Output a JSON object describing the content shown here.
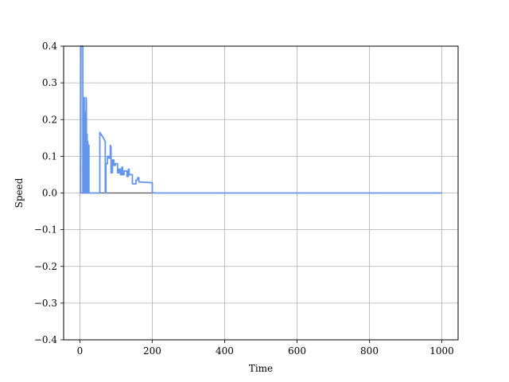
{
  "chart_data": {
    "type": "line",
    "title": "",
    "xlabel": "Time",
    "ylabel": "Speed",
    "xlim": [
      -45,
      1045
    ],
    "ylim": [
      -0.4,
      0.4
    ],
    "grid": true,
    "xticks": [
      0,
      200,
      400,
      600,
      800,
      1000
    ],
    "xtick_labels": [
      "0",
      "200",
      "400",
      "600",
      "800",
      "1000"
    ],
    "yticks": [
      -0.4,
      -0.3,
      -0.2,
      -0.1,
      0.0,
      0.1,
      0.2,
      0.3,
      0.4
    ],
    "ytick_labels": [
      "−0.4",
      "−0.3",
      "−0.2",
      "−0.1",
      "0.0",
      "0.1",
      "0.2",
      "0.3",
      "0.4"
    ],
    "series": [
      {
        "color": "#6495ED",
        "points": [
          [
            0,
            0
          ],
          [
            2,
            0
          ],
          [
            3,
            0.4
          ],
          [
            8,
            0.4
          ],
          [
            8,
            0
          ],
          [
            10,
            0
          ],
          [
            10,
            0.26
          ],
          [
            12,
            0.26
          ],
          [
            12,
            0
          ],
          [
            13,
            0
          ],
          [
            13,
            0.22
          ],
          [
            14,
            0.22
          ],
          [
            14,
            0
          ],
          [
            15,
            0
          ],
          [
            15,
            0.16
          ],
          [
            16,
            0.16
          ],
          [
            16,
            0
          ],
          [
            17,
            0
          ],
          [
            17,
            0.26
          ],
          [
            18,
            0.25
          ],
          [
            18,
            0
          ],
          [
            19,
            0
          ],
          [
            19,
            0.16
          ],
          [
            20,
            0.16
          ],
          [
            20,
            0
          ],
          [
            21,
            0
          ],
          [
            21,
            0.14
          ],
          [
            22,
            0.14
          ],
          [
            22,
            0
          ],
          [
            24,
            0
          ],
          [
            24,
            0.13
          ],
          [
            25,
            0.13
          ],
          [
            25,
            0
          ],
          [
            55,
            0
          ],
          [
            55,
            0.165
          ],
          [
            65,
            0.15
          ],
          [
            70,
            0.14
          ],
          [
            70,
            0
          ],
          [
            72,
            0
          ],
          [
            72,
            0.08
          ],
          [
            76,
            0.08
          ],
          [
            76,
            0.1
          ],
          [
            80,
            0.1
          ],
          [
            80,
            0.095
          ],
          [
            84,
            0.095
          ],
          [
            84,
            0.13
          ],
          [
            86,
            0.125
          ],
          [
            86,
            0.055
          ],
          [
            90,
            0.055
          ],
          [
            90,
            0.09
          ],
          [
            94,
            0.09
          ],
          [
            94,
            0.075
          ],
          [
            98,
            0.075
          ],
          [
            98,
            0.08
          ],
          [
            104,
            0.08
          ],
          [
            104,
            0.055
          ],
          [
            108,
            0.055
          ],
          [
            108,
            0.065
          ],
          [
            112,
            0.065
          ],
          [
            112,
            0.05
          ],
          [
            116,
            0.05
          ],
          [
            116,
            0.07
          ],
          [
            118,
            0.07
          ],
          [
            118,
            0.05
          ],
          [
            122,
            0.05
          ],
          [
            122,
            0.06
          ],
          [
            130,
            0.06
          ],
          [
            130,
            0.045
          ],
          [
            134,
            0.045
          ],
          [
            134,
            0.065
          ],
          [
            136,
            0.065
          ],
          [
            136,
            0.05
          ],
          [
            145,
            0.05
          ],
          [
            145,
            0.025
          ],
          [
            155,
            0.025
          ],
          [
            155,
            0.035
          ],
          [
            158,
            0.035
          ],
          [
            160,
            0.042
          ],
          [
            163,
            0.042
          ],
          [
            163,
            0.03
          ],
          [
            200,
            0.028
          ],
          [
            200,
            0.002
          ],
          [
            205,
            0
          ],
          [
            1000,
            0
          ]
        ]
      },
      {
        "color": "#555555",
        "points": [
          [
            0,
            0
          ],
          [
            200,
            0
          ]
        ]
      }
    ]
  }
}
